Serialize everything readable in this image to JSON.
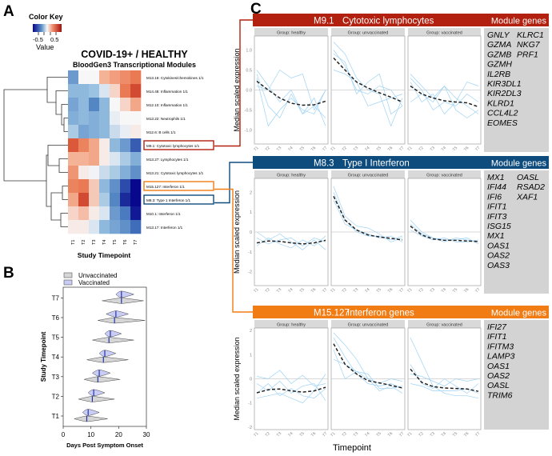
{
  "panel_labels": {
    "a": "A",
    "b": "B",
    "c": "C"
  },
  "colors": {
    "red": "#B2200F",
    "blue": "#0F4C7E",
    "orange": "#F27C14",
    "gene_line": "#9FD3F5",
    "strip": "#D9D9D9",
    "gene_box": "#D3D3D3",
    "vaccinated": "#C9CDF5",
    "unvaccinated": "#D6D6D6",
    "median_mark": "#2233AA"
  },
  "chart_data": [
    {
      "type": "heatmap",
      "title": "COVID-19+ / HEALTHY",
      "subtitle": "BloodGen3 Transcriptional Modules",
      "xlabel": "Study Timepoint",
      "color_key": {
        "title": "Color Key",
        "label": "Value",
        "ticks": [
          "-0.5",
          "0.5"
        ],
        "range": [
          -1,
          1
        ]
      },
      "columns": [
        "T1",
        "T2",
        "T3",
        "T4",
        "T5",
        "T6",
        "T7"
      ],
      "rows": [
        {
          "label": "M13.16: Cytokines/chemokines 1/1",
          "values": [
            -0.5,
            0,
            0,
            0.3,
            0.4,
            0.5,
            0.6
          ]
        },
        {
          "label": "M14.48: Inflammation 1/1",
          "values": [
            -0.35,
            -0.35,
            -0.3,
            -0.1,
            0.15,
            0.6,
            0.8
          ]
        },
        {
          "label": "M12.10: Inflammation 1/1",
          "values": [
            -0.45,
            -0.35,
            -0.6,
            -0.35,
            0,
            0.15,
            0.35
          ]
        },
        {
          "label": "M13.22: Neutrophils 1/1",
          "values": [
            -0.4,
            -0.35,
            -0.4,
            -0.35,
            -0.05,
            0,
            0
          ]
        },
        {
          "label": "M12.6: B cells 1/1",
          "values": [
            -0.25,
            -0.45,
            -0.4,
            -0.35,
            -0.15,
            -0.05,
            0.05
          ]
        },
        {
          "label": "M9.1: Cytotoxic lymphocytes 1/1",
          "values": [
            0.75,
            0.55,
            0.35,
            0.05,
            -0.35,
            -0.5,
            -0.75
          ],
          "highlight": "red"
        },
        {
          "label": "M13.27: Lymphocytes 1/1",
          "values": [
            0.3,
            0.3,
            0.35,
            0.05,
            -0.1,
            -0.25,
            -0.4
          ]
        },
        {
          "label": "M13.21: Cytotoxic lymphocytes 1/1",
          "values": [
            0.45,
            0.05,
            -0.02,
            -0.15,
            -0.25,
            -0.4,
            -0.55
          ]
        },
        {
          "label": "M15.127: Interferon 1/1",
          "values": [
            0.55,
            0.6,
            0.2,
            -0.35,
            -0.55,
            -0.8,
            -1.0
          ],
          "highlight": "orange"
        },
        {
          "label": "M8.3: Type 1 Interferon 1/1",
          "values": [
            0.35,
            0.8,
            0.2,
            -0.25,
            -0.6,
            -0.9,
            -1.0
          ],
          "highlight": "blue"
        },
        {
          "label": "M10.1: Interferon 1/1",
          "values": [
            0.15,
            0.25,
            0.05,
            -0.1,
            -0.5,
            -0.65,
            -0.95
          ]
        },
        {
          "label": "M13.17: Interferon 1/1",
          "values": [
            0.05,
            0.05,
            -0.1,
            -0.35,
            -0.45,
            -0.55,
            -0.7
          ]
        }
      ]
    },
    {
      "type": "violin",
      "xlabel": "Days Post Symptom Onset",
      "ylabel": "Study Timepoint",
      "xlim": [
        0,
        30
      ],
      "xticks": [
        "0",
        "10",
        "20",
        "30"
      ],
      "legend": [
        "Unvaccinated",
        "Vaccinated"
      ],
      "legend_position": "top-left",
      "categories": [
        "T1",
        "T2",
        "T3",
        "T4",
        "T5",
        "T6",
        "T7"
      ],
      "series": [
        {
          "name": "Unvaccinated",
          "median": [
            8.5,
            10.5,
            12.5,
            14.5,
            16.5,
            18.5,
            21
          ],
          "min": [
            4,
            5.5,
            7.5,
            8.5,
            10.5,
            12.5,
            14
          ],
          "max": [
            16,
            18.5,
            20.5,
            23.5,
            25.5,
            29.5,
            29
          ]
        },
        {
          "name": "Vaccinated",
          "median": [
            9,
            11,
            13,
            15,
            17,
            19,
            21
          ],
          "min": [
            7,
            9,
            10.5,
            13,
            15,
            15.5,
            19
          ],
          "max": [
            13,
            15,
            17,
            19,
            21,
            23.5,
            25.5
          ]
        }
      ]
    },
    {
      "type": "line",
      "xlabel": "Timepoint",
      "ylabel": "Median scaled expression",
      "x": [
        "T1",
        "T2",
        "T3",
        "T4",
        "T5",
        "T6",
        "T7"
      ],
      "facet_strip_prefix": "Group: ",
      "groups": [
        "healthy",
        "unvaccinated",
        "vaccinated"
      ],
      "module_genes_label": "Module genes",
      "modules": [
        {
          "id": "M9.1",
          "name": "Cytotoxic lymphocytes",
          "color": "red",
          "ylim": [
            -1.35,
            1.35
          ],
          "yticks": [
            1.0,
            0.5,
            0.0,
            -0.5,
            -1.0
          ],
          "ytick_labels": [
            "1.0",
            "0.5",
            "0.0",
            "-0.5",
            "-1.0"
          ],
          "genes_col1": [
            "GNLY",
            "GZMA",
            "GZMB",
            "GZMH",
            "IL2RB",
            "KIR3DL1",
            "KIR2DL3",
            "KLRD1",
            "CCL4L2",
            "EOMES"
          ],
          "genes_col2": [
            "KLRC1",
            "NKG7",
            "PRF1"
          ],
          "panels": [
            {
              "median": [
                0.22,
                0.0,
                -0.2,
                -0.33,
                -0.38,
                -0.37,
                -0.28
              ],
              "genes": [
                [
                  0.5,
                  0.1,
                  -0.3,
                  0.0,
                  -0.6,
                  -0.4,
                  -0.7
                ],
                [
                  0.3,
                  -0.9,
                  -0.5,
                  -0.2,
                  -0.5,
                  -0.6,
                  0.0
                ],
                [
                  0.1,
                  0.0,
                  0.5,
                  0.3,
                  0.4,
                  -0.5,
                  0.0
                ],
                [
                  0.4,
                  -0.4,
                  -0.7,
                  -0.1,
                  -0.6,
                  -0.2,
                  -0.9
                ]
              ]
            },
            {
              "median": [
                0.8,
                0.5,
                0.2,
                0.05,
                -0.07,
                -0.18,
                -0.3
              ],
              "genes": [
                [
                  1.2,
                  0.9,
                  0.3,
                  0.0,
                  -0.1,
                  -0.9,
                  -0.2
                ],
                [
                  0.9,
                  0.7,
                  -0.1,
                  0.2,
                  0.4,
                  -0.6,
                  -0.4
                ],
                [
                  0.5,
                  0.4,
                  0.2,
                  -0.4,
                  -0.3,
                  -0.2,
                  -0.1
                ],
                [
                  1.0,
                  0.6,
                  0.0,
                  -0.1,
                  0.1,
                  0.0,
                  -0.4
                ]
              ]
            },
            {
              "median": [
                0.1,
                -0.1,
                -0.2,
                -0.27,
                -0.3,
                -0.32,
                -0.42
              ],
              "genes": [
                [
                  0.4,
                  0.1,
                  -0.2,
                  0.1,
                  -0.5,
                  -0.7,
                  -0.5
                ],
                [
                  0.2,
                  -0.3,
                  -0.1,
                  -0.6,
                  -0.3,
                  0.2,
                  0.1
                ],
                [
                  -0.3,
                  -0.1,
                  -0.3,
                  0.1,
                  -0.2,
                  -0.4,
                  -0.6
                ],
                [
                  0.3,
                  0.0,
                  -0.5,
                  -0.3,
                  -0.4,
                  -0.1,
                  -0.3
                ]
              ]
            }
          ]
        },
        {
          "id": "M8.3",
          "name": "Type I Interferon",
          "color": "blue",
          "ylim": [
            -2.7,
            2.7
          ],
          "yticks": [
            2,
            1,
            0,
            -1,
            -2
          ],
          "ytick_labels": [
            "2",
            "1",
            "0",
            "-1",
            "-2"
          ],
          "genes_col1": [
            "MX1",
            "IFI44",
            "IFI6",
            "IFIT1",
            "IFIT3",
            "ISG15",
            "MX1",
            "OAS1",
            "OAS2",
            "OAS3"
          ],
          "genes_col2": [
            "OASL",
            "RSAD2",
            "XAF1"
          ],
          "panels": [
            {
              "median": [
                -0.55,
                -0.45,
                -0.47,
                -0.55,
                -0.6,
                -0.55,
                -0.42
              ],
              "genes": [
                [
                  0.0,
                  -0.4,
                  -0.1,
                  -0.5,
                  -0.9,
                  -0.4,
                  -0.9
                ],
                [
                  -0.7,
                  -0.3,
                  -0.6,
                  -0.8,
                  -0.4,
                  -0.7,
                  -0.2
                ],
                [
                  -0.3,
                  -0.6,
                  -0.4,
                  -0.3,
                  -0.7,
                  -0.3,
                  -0.5
                ]
              ]
            },
            {
              "median": [
                1.8,
                0.6,
                0.1,
                -0.15,
                -0.25,
                -0.32,
                -0.4
              ],
              "genes": [
                [
                  2.3,
                  0.8,
                  0.3,
                  0.2,
                  -0.1,
                  -0.5,
                  -0.3
                ],
                [
                  1.6,
                  0.4,
                  0.1,
                  -0.1,
                  -0.3,
                  -0.2,
                  -0.5
                ],
                [
                  2.0,
                  0.6,
                  0.0,
                  -0.2,
                  -0.2,
                  -0.4,
                  -0.2
                ]
              ]
            },
            {
              "median": [
                0.3,
                -0.15,
                -0.35,
                -0.42,
                -0.42,
                -0.45,
                -0.48
              ],
              "genes": [
                [
                  0.6,
                  0.0,
                  -0.3,
                  -0.5,
                  -0.3,
                  -0.4,
                  -0.5
                ],
                [
                  0.1,
                  -0.2,
                  -0.4,
                  -0.3,
                  -0.5,
                  -0.5,
                  -0.4
                ],
                [
                  0.4,
                  -0.1,
                  -0.3,
                  -0.4,
                  -0.4,
                  -0.3,
                  -0.6
                ]
              ]
            }
          ]
        },
        {
          "id": "M15.127",
          "name": "Interferon genes",
          "color": "orange",
          "ylim": [
            -2.1,
            2.1
          ],
          "yticks": [
            2,
            1,
            0,
            -1,
            -2
          ],
          "ytick_labels": [
            "2",
            "1",
            "0",
            "-1",
            "-2"
          ],
          "genes_col1": [
            "IFI27",
            "IFIT1",
            "IFITM3",
            "LAMP3",
            "OAS1",
            "OAS2",
            "OASL",
            "TRIM6"
          ],
          "genes_col2": [],
          "panels": [
            {
              "median": [
                -0.58,
                -0.45,
                -0.42,
                -0.5,
                -0.55,
                -0.5,
                -0.35
              ],
              "genes": [
                [
                  0.1,
                  0.0,
                  0.35,
                  -0.2,
                  0.15,
                  -0.3,
                  -0.2
                ],
                [
                  -0.8,
                  -0.7,
                  -0.6,
                  -0.8,
                  -1.0,
                  -0.5,
                  0.2
                ],
                [
                  -0.2,
                  -0.5,
                  -0.1,
                  -0.6,
                  -0.3,
                  -0.2,
                  -0.9
                ],
                [
                  -0.6,
                  -0.2,
                  -0.7,
                  -0.4,
                  -0.7,
                  -0.8,
                  -0.4
                ]
              ]
            },
            {
              "median": [
                1.45,
                0.6,
                0.2,
                -0.08,
                -0.17,
                -0.27,
                -0.38
              ],
              "genes": [
                [
                  1.9,
                  1.4,
                  0.8,
                  0.0,
                  -0.5,
                  -0.3,
                  -0.6
                ],
                [
                  1.2,
                  0.0,
                  0.3,
                  0.0,
                  -0.2,
                  0.0,
                  -0.1
                ],
                [
                  0.8,
                  0.6,
                  0.3,
                  0.2,
                  -0.4,
                  -0.4,
                  -0.3
                ],
                [
                  1.7,
                  0.9,
                  0.2,
                  -0.2,
                  -0.3,
                  -0.2,
                  -0.4
                ]
              ]
            },
            {
              "median": [
                0.4,
                -0.15,
                -0.32,
                -0.38,
                -0.4,
                -0.42,
                -0.52
              ],
              "genes": [
                [
                  1.7,
                  0.7,
                  -0.3,
                  -0.6,
                  -0.7,
                  -0.7,
                  -0.8
                ],
                [
                  0.6,
                  -0.2,
                  -0.4,
                  0.0,
                  -0.3,
                  -0.6,
                  -0.2
                ],
                [
                  0.2,
                  0.1,
                  -0.1,
                  -0.3,
                  0.0,
                  -0.1,
                  0.0
                ],
                [
                  -0.2,
                  -0.3,
                  -0.5,
                  -0.5,
                  -0.5,
                  -0.4,
                  -0.6
                ]
              ]
            }
          ]
        }
      ]
    }
  ]
}
